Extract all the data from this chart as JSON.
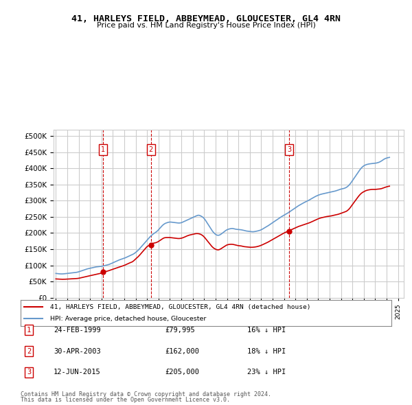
{
  "title": "41, HARLEYS FIELD, ABBEYMEAD, GLOUCESTER, GL4 4RN",
  "subtitle": "Price paid vs. HM Land Registry's House Price Index (HPI)",
  "legend_line1": "41, HARLEYS FIELD, ABBEYMEAD, GLOUCESTER, GL4 4RN (detached house)",
  "legend_line2": "HPI: Average price, detached house, Gloucester",
  "table": [
    {
      "num": "1",
      "date": "24-FEB-1999",
      "price": "£79,995",
      "pct": "16% ↓ HPI"
    },
    {
      "num": "2",
      "date": "30-APR-2003",
      "price": "£162,000",
      "pct": "18% ↓ HPI"
    },
    {
      "num": "3",
      "date": "12-JUN-2015",
      "price": "£205,000",
      "pct": "23% ↓ HPI"
    }
  ],
  "footer1": "Contains HM Land Registry data © Crown copyright and database right 2024.",
  "footer2": "This data is licensed under the Open Government Licence v3.0.",
  "price_color": "#cc0000",
  "hpi_color": "#6699cc",
  "vline_color": "#cc0000",
  "background_color": "#ffffff",
  "grid_color": "#cccccc",
  "ylim": [
    0,
    520000
  ],
  "yticks": [
    0,
    50000,
    100000,
    150000,
    200000,
    250000,
    300000,
    350000,
    400000,
    450000,
    500000
  ],
  "sale_points": [
    {
      "year": 1999.14,
      "price": 79995
    },
    {
      "year": 2003.33,
      "price": 162000
    },
    {
      "year": 2015.44,
      "price": 205000
    }
  ],
  "sale_vlines": [
    1999.14,
    2003.33,
    2015.44
  ],
  "hpi_data": {
    "years": [
      1995,
      1995.25,
      1995.5,
      1995.75,
      1996,
      1996.25,
      1996.5,
      1996.75,
      1997,
      1997.25,
      1997.5,
      1997.75,
      1998,
      1998.25,
      1998.5,
      1998.75,
      1999,
      1999.25,
      1999.5,
      1999.75,
      2000,
      2000.25,
      2000.5,
      2000.75,
      2001,
      2001.25,
      2001.5,
      2001.75,
      2002,
      2002.25,
      2002.5,
      2002.75,
      2003,
      2003.25,
      2003.5,
      2003.75,
      2004,
      2004.25,
      2004.5,
      2004.75,
      2005,
      2005.25,
      2005.5,
      2005.75,
      2006,
      2006.25,
      2006.5,
      2006.75,
      2007,
      2007.25,
      2007.5,
      2007.75,
      2008,
      2008.25,
      2008.5,
      2008.75,
      2009,
      2009.25,
      2009.5,
      2009.75,
      2010,
      2010.25,
      2010.5,
      2010.75,
      2011,
      2011.25,
      2011.5,
      2011.75,
      2012,
      2012.25,
      2012.5,
      2012.75,
      2013,
      2013.25,
      2013.5,
      2013.75,
      2014,
      2014.25,
      2014.5,
      2014.75,
      2015,
      2015.25,
      2015.5,
      2015.75,
      2016,
      2016.25,
      2016.5,
      2016.75,
      2017,
      2017.25,
      2017.5,
      2017.75,
      2018,
      2018.25,
      2018.5,
      2018.75,
      2019,
      2019.25,
      2019.5,
      2019.75,
      2020,
      2020.25,
      2020.5,
      2020.75,
      2021,
      2021.25,
      2021.5,
      2021.75,
      2022,
      2022.25,
      2022.5,
      2022.75,
      2023,
      2023.25,
      2023.5,
      2023.75,
      2024,
      2024.25
    ],
    "values": [
      75000,
      74000,
      73500,
      74000,
      75000,
      76000,
      77000,
      78000,
      80000,
      83000,
      86000,
      89000,
      91000,
      93000,
      95000,
      96000,
      97000,
      99000,
      101000,
      104000,
      108000,
      112000,
      116000,
      119000,
      122000,
      126000,
      130000,
      134000,
      140000,
      148000,
      158000,
      168000,
      178000,
      188000,
      196000,
      202000,
      210000,
      220000,
      228000,
      232000,
      234000,
      233000,
      232000,
      231000,
      232000,
      236000,
      240000,
      244000,
      248000,
      252000,
      255000,
      252000,
      245000,
      232000,
      218000,
      205000,
      196000,
      193000,
      197000,
      204000,
      210000,
      213000,
      214000,
      212000,
      211000,
      210000,
      208000,
      206000,
      205000,
      204000,
      205000,
      207000,
      210000,
      215000,
      220000,
      226000,
      232000,
      238000,
      244000,
      250000,
      255000,
      260000,
      266000,
      272000,
      278000,
      284000,
      289000,
      294000,
      298000,
      303000,
      308000,
      313000,
      317000,
      320000,
      322000,
      324000,
      326000,
      328000,
      330000,
      333000,
      336000,
      338000,
      342000,
      350000,
      362000,
      375000,
      388000,
      400000,
      408000,
      412000,
      414000,
      415000,
      416000,
      418000,
      422000,
      428000,
      432000,
      434000
    ],
    "smooth": true
  },
  "price_paid_data": {
    "years": [
      1995,
      1995.25,
      1995.5,
      1995.75,
      1996,
      1996.25,
      1996.5,
      1996.75,
      1997,
      1997.25,
      1997.5,
      1997.75,
      1998,
      1998.25,
      1998.5,
      1998.75,
      1999,
      1999.25,
      1999.5,
      1999.75,
      2000,
      2000.25,
      2000.5,
      2000.75,
      2001,
      2001.25,
      2001.5,
      2001.75,
      2002,
      2002.25,
      2002.5,
      2002.75,
      2003,
      2003.25,
      2003.5,
      2003.75,
      2004,
      2004.25,
      2004.5,
      2004.75,
      2005,
      2005.25,
      2005.5,
      2005.75,
      2006,
      2006.25,
      2006.5,
      2006.75,
      2007,
      2007.25,
      2007.5,
      2007.75,
      2008,
      2008.25,
      2008.5,
      2008.75,
      2009,
      2009.25,
      2009.5,
      2009.75,
      2010,
      2010.25,
      2010.5,
      2010.75,
      2011,
      2011.25,
      2011.5,
      2011.75,
      2012,
      2012.25,
      2012.5,
      2012.75,
      2013,
      2013.25,
      2013.5,
      2013.75,
      2014,
      2014.25,
      2014.5,
      2014.75,
      2015,
      2015.25,
      2015.5,
      2015.75,
      2016,
      2016.25,
      2016.5,
      2016.75,
      2017,
      2017.25,
      2017.5,
      2017.75,
      2018,
      2018.25,
      2018.5,
      2018.75,
      2019,
      2019.25,
      2019.5,
      2019.75,
      2020,
      2020.25,
      2020.5,
      2020.75,
      2021,
      2021.25,
      2021.5,
      2021.75,
      2022,
      2022.25,
      2022.5,
      2022.75,
      2023,
      2023.25,
      2023.5,
      2023.75,
      2024,
      2024.25
    ],
    "values": [
      58000,
      57500,
      57000,
      57000,
      57500,
      58000,
      58500,
      59000,
      60000,
      62000,
      64000,
      66000,
      68000,
      70000,
      72000,
      74000,
      76000,
      80000,
      82000,
      85000,
      88000,
      91000,
      94000,
      97000,
      100000,
      104000,
      108000,
      112000,
      120000,
      128000,
      138000,
      148000,
      158000,
      163000,
      168000,
      170000,
      174000,
      180000,
      185000,
      186000,
      186000,
      185000,
      184000,
      183000,
      184000,
      187000,
      191000,
      194000,
      196000,
      198000,
      198000,
      195000,
      188000,
      177000,
      166000,
      156000,
      150000,
      148000,
      152000,
      158000,
      163000,
      165000,
      165000,
      163000,
      161000,
      160000,
      158000,
      157000,
      156000,
      156000,
      157000,
      159000,
      162000,
      166000,
      170000,
      175000,
      180000,
      185000,
      190000,
      195000,
      200000,
      204000,
      208000,
      212000,
      216000,
      220000,
      223000,
      226000,
      229000,
      232000,
      236000,
      240000,
      244000,
      247000,
      249000,
      251000,
      252000,
      254000,
      256000,
      258000,
      261000,
      264000,
      268000,
      276000,
      288000,
      300000,
      312000,
      322000,
      328000,
      332000,
      334000,
      335000,
      335000,
      336000,
      337000,
      340000,
      343000,
      345000
    ],
    "smooth": true
  }
}
